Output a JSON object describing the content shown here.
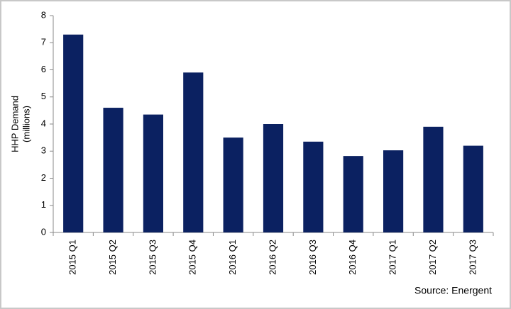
{
  "chart_data": {
    "type": "bar",
    "ylabel": [
      "HHP Demand",
      "(millions)"
    ],
    "source": "Source: Energent",
    "categories": [
      "2015 Q1",
      "2015 Q2",
      "2015 Q3",
      "2015 Q4",
      "2016 Q1",
      "2016 Q2",
      "2016 Q3",
      "2016 Q4",
      "2017 Q1",
      "2017 Q2",
      "2017 Q3"
    ],
    "values": [
      7.3,
      4.6,
      4.35,
      5.9,
      3.5,
      4.0,
      3.35,
      2.82,
      3.03,
      3.9,
      3.2
    ],
    "color": "#0b2161",
    "ylim": [
      0,
      8
    ],
    "yticks": [
      0,
      1,
      2,
      3,
      4,
      5,
      6,
      7,
      8
    ],
    "grid": false
  }
}
